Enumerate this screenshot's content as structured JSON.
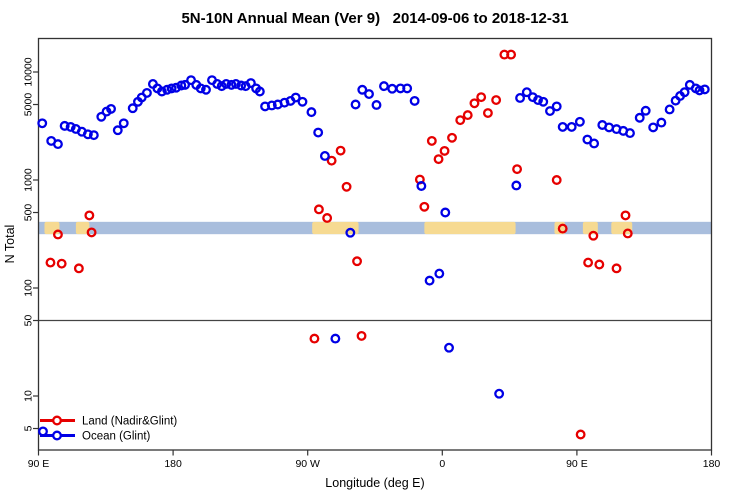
{
  "title": "5N-10N Annual Mean (Ver 9)   2014-09-06 to 2018-12-31",
  "chart_data": {
    "type": "scatter",
    "title": "5N-10N Annual Mean (Ver 9)   2014-09-06 to 2018-12-31",
    "xlabel": "Longitude (deg E)",
    "ylabel": "N Total",
    "x_axis": {
      "note": "axis spans 450 degrees of longitude starting at 90E (90E..180..90W..0..90E..180)",
      "range_deg": [
        90,
        540
      ],
      "ticks": [
        {
          "deg": 90,
          "label": "90 E"
        },
        {
          "deg": 180,
          "label": "180"
        },
        {
          "deg": 270,
          "label": "90 W"
        },
        {
          "deg": 360,
          "label": "0"
        },
        {
          "deg": 450,
          "label": "90 E"
        },
        {
          "deg": 540,
          "label": "180"
        }
      ]
    },
    "y_axis": {
      "scale": "log10",
      "ticks": [
        10000,
        5000,
        1000,
        500,
        100,
        50,
        10,
        5
      ],
      "range": [
        3.2,
        20000
      ]
    },
    "reference_line_value": 50,
    "map_strip": {
      "description": "world-map latitude band 5N-10N drawn across plot",
      "value_range": [
        315,
        410
      ],
      "ocean_color": "#a9bedd",
      "land_color": "#f6da92",
      "land_patches_deg": [
        [
          94,
          104
        ],
        [
          115,
          124
        ],
        [
          273,
          304
        ],
        [
          348,
          409
        ],
        [
          435,
          442
        ],
        [
          454,
          464
        ],
        [
          473,
          487
        ]
      ]
    },
    "series": [
      {
        "name": "Land (Nadir&Glint)",
        "color": "#e60000",
        "points": [
          [
            98,
            172
          ],
          [
            103,
            313
          ],
          [
            105.5,
            168
          ],
          [
            117,
            152
          ],
          [
            124,
            470
          ],
          [
            125.5,
            327
          ],
          [
            274.5,
            34
          ],
          [
            277.5,
            535
          ],
          [
            283,
            445
          ],
          [
            286,
            1510
          ],
          [
            292,
            1870
          ],
          [
            296,
            865
          ],
          [
            303,
            177
          ],
          [
            306,
            36
          ],
          [
            345,
            1010
          ],
          [
            348,
            565
          ],
          [
            353,
            2300
          ],
          [
            357.5,
            1560
          ],
          [
            361.5,
            1860
          ],
          [
            366.5,
            2460
          ],
          [
            372,
            3580
          ],
          [
            377,
            3990
          ],
          [
            381.5,
            5130
          ],
          [
            386,
            5850
          ],
          [
            390.5,
            4170
          ],
          [
            396,
            5500
          ],
          [
            401.5,
            14500
          ],
          [
            406,
            14500
          ],
          [
            410,
            1260
          ],
          [
            436.5,
            1000
          ],
          [
            440.5,
            355
          ],
          [
            452.5,
            4.4
          ],
          [
            457.5,
            172
          ],
          [
            461,
            305
          ],
          [
            465,
            165
          ],
          [
            476.5,
            152
          ],
          [
            482.5,
            470
          ],
          [
            484,
            320
          ]
        ]
      },
      {
        "name": "Ocean (Glint)",
        "color": "#0000e6",
        "points": [
          [
            92.5,
            3350
          ],
          [
            93,
            4.7
          ],
          [
            98.5,
            2300
          ],
          [
            103,
            2150
          ],
          [
            107.5,
            3170
          ],
          [
            111.5,
            3100
          ],
          [
            115,
            2970
          ],
          [
            119,
            2800
          ],
          [
            123,
            2650
          ],
          [
            127,
            2600
          ],
          [
            132,
            3850
          ],
          [
            135.5,
            4300
          ],
          [
            138.5,
            4550
          ],
          [
            143,
            2890
          ],
          [
            147,
            3350
          ],
          [
            153,
            4620
          ],
          [
            156.5,
            5300
          ],
          [
            159,
            5800
          ],
          [
            162.5,
            6400
          ],
          [
            166.5,
            7750
          ],
          [
            169.5,
            7050
          ],
          [
            172.5,
            6600
          ],
          [
            176,
            6850
          ],
          [
            179,
            7050
          ],
          [
            182,
            7150
          ],
          [
            185.5,
            7500
          ],
          [
            188,
            7600
          ],
          [
            192,
            8400
          ],
          [
            195.5,
            7600
          ],
          [
            198.5,
            7050
          ],
          [
            202,
            6850
          ],
          [
            206,
            8400
          ],
          [
            209.5,
            7750
          ],
          [
            212.5,
            7400
          ],
          [
            215.5,
            7750
          ],
          [
            219,
            7600
          ],
          [
            222,
            7750
          ],
          [
            225.5,
            7500
          ],
          [
            228.5,
            7400
          ],
          [
            232,
            7900
          ],
          [
            235.5,
            7050
          ],
          [
            238,
            6600
          ],
          [
            241.5,
            4800
          ],
          [
            246,
            4900
          ],
          [
            250,
            5000
          ],
          [
            254.5,
            5200
          ],
          [
            258.5,
            5400
          ],
          [
            262,
            5800
          ],
          [
            266.5,
            5300
          ],
          [
            272.5,
            4250
          ],
          [
            277,
            2750
          ],
          [
            281.5,
            1670
          ],
          [
            288.5,
            34
          ],
          [
            298.5,
            325
          ],
          [
            302,
            5000
          ],
          [
            306.5,
            6850
          ],
          [
            311,
            6250
          ],
          [
            316,
            4950
          ],
          [
            321,
            7400
          ],
          [
            326.5,
            7000
          ],
          [
            332,
            7050
          ],
          [
            336.5,
            7050
          ],
          [
            341.5,
            5400
          ],
          [
            346,
            880
          ],
          [
            351.5,
            117
          ],
          [
            358,
            136
          ],
          [
            362,
            500
          ],
          [
            364.5,
            28
          ],
          [
            398,
            10.5
          ],
          [
            409.5,
            890
          ],
          [
            412,
            5750
          ],
          [
            416.5,
            6500
          ],
          [
            420.5,
            5850
          ],
          [
            424,
            5500
          ],
          [
            427.5,
            5300
          ],
          [
            432,
            4350
          ],
          [
            436.5,
            4800
          ],
          [
            440.5,
            3100
          ],
          [
            446.5,
            3100
          ],
          [
            452,
            3460
          ],
          [
            457,
            2370
          ],
          [
            461.5,
            2180
          ],
          [
            467,
            3230
          ],
          [
            471.5,
            3070
          ],
          [
            476.5,
            2960
          ],
          [
            481,
            2850
          ],
          [
            485.5,
            2720
          ],
          [
            492,
            3770
          ],
          [
            496,
            4380
          ],
          [
            501,
            3070
          ],
          [
            506.5,
            3400
          ],
          [
            512,
            4500
          ],
          [
            516,
            5430
          ],
          [
            519,
            6000
          ],
          [
            522,
            6500
          ],
          [
            525.5,
            7600
          ],
          [
            529.5,
            7050
          ],
          [
            532,
            6750
          ],
          [
            535.5,
            6900
          ]
        ]
      }
    ],
    "legend": {
      "position": "bottom-left",
      "items": [
        {
          "label": "Land (Nadir&Glint)",
          "color": "#e60000"
        },
        {
          "label": "Ocean (Glint)",
          "color": "#0000e6"
        }
      ]
    }
  }
}
